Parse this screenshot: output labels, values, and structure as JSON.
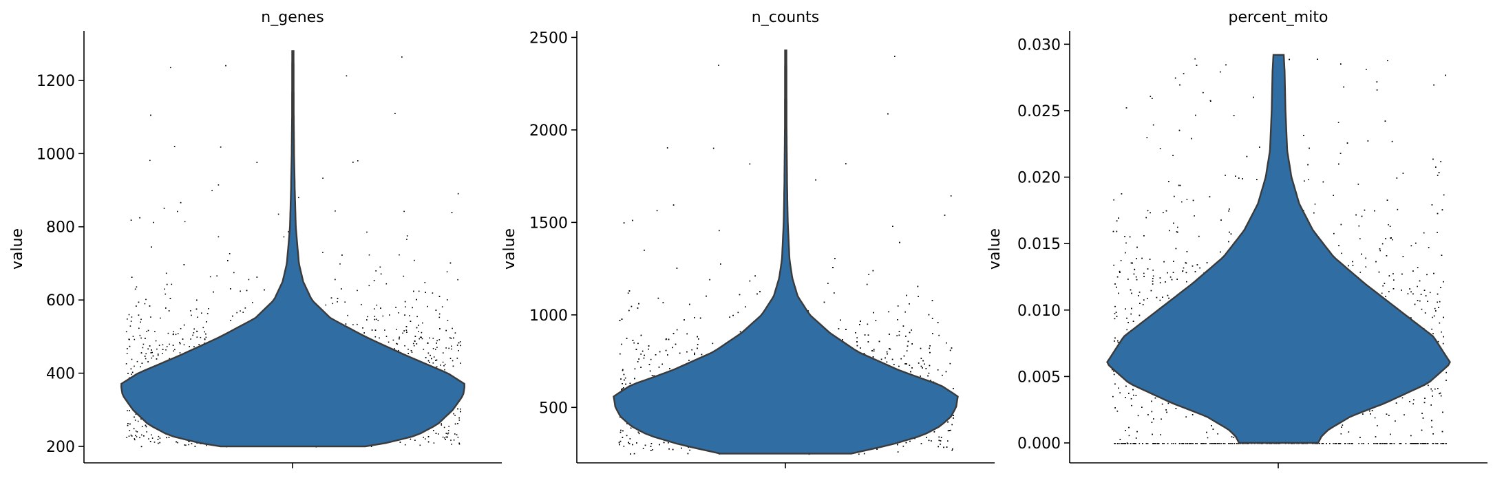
{
  "figure": {
    "background": "#ffffff"
  },
  "chart_data": [
    {
      "type": "violin",
      "title": "n_genes",
      "xlabel": "",
      "ylabel": "value",
      "ylim": [
        155,
        1335
      ],
      "yticks": [
        200,
        400,
        600,
        800,
        1000,
        1200
      ],
      "ytick_labels": [
        "200",
        "400",
        "600",
        "800",
        "1000",
        "1200"
      ],
      "color": "#2f6da3",
      "grid": false,
      "strip_points": true,
      "density_profile": [
        {
          "y": 200,
          "w": 0.42
        },
        {
          "y": 210,
          "w": 0.55
        },
        {
          "y": 230,
          "w": 0.72
        },
        {
          "y": 260,
          "w": 0.84
        },
        {
          "y": 300,
          "w": 0.93
        },
        {
          "y": 340,
          "w": 0.99
        },
        {
          "y": 370,
          "w": 1.0
        },
        {
          "y": 400,
          "w": 0.9
        },
        {
          "y": 450,
          "w": 0.65
        },
        {
          "y": 500,
          "w": 0.42
        },
        {
          "y": 550,
          "w": 0.22
        },
        {
          "y": 600,
          "w": 0.11
        },
        {
          "y": 650,
          "w": 0.06
        },
        {
          "y": 700,
          "w": 0.035
        },
        {
          "y": 800,
          "w": 0.017
        },
        {
          "y": 900,
          "w": 0.011
        },
        {
          "y": 1000,
          "w": 0.007
        },
        {
          "y": 1100,
          "w": 0.005
        },
        {
          "y": 1280,
          "w": 0.004
        }
      ],
      "data_min": 200,
      "data_max": 1280
    },
    {
      "type": "violin",
      "title": "n_counts",
      "xlabel": "",
      "ylabel": "value",
      "ylim": [
        200,
        2535
      ],
      "yticks": [
        500,
        1000,
        1500,
        2000,
        2500
      ],
      "ytick_labels": [
        "500",
        "1000",
        "1500",
        "2000",
        "2500"
      ],
      "color": "#2f6da3",
      "grid": false,
      "strip_points": true,
      "density_profile": [
        {
          "y": 250,
          "w": 0.38
        },
        {
          "y": 300,
          "w": 0.62
        },
        {
          "y": 350,
          "w": 0.8
        },
        {
          "y": 400,
          "w": 0.9
        },
        {
          "y": 450,
          "w": 0.96
        },
        {
          "y": 500,
          "w": 0.99
        },
        {
          "y": 560,
          "w": 1.0
        },
        {
          "y": 620,
          "w": 0.9
        },
        {
          "y": 700,
          "w": 0.66
        },
        {
          "y": 800,
          "w": 0.42
        },
        {
          "y": 900,
          "w": 0.26
        },
        {
          "y": 1000,
          "w": 0.14
        },
        {
          "y": 1100,
          "w": 0.07
        },
        {
          "y": 1200,
          "w": 0.038
        },
        {
          "y": 1300,
          "w": 0.022
        },
        {
          "y": 1500,
          "w": 0.012
        },
        {
          "y": 1700,
          "w": 0.008
        },
        {
          "y": 2000,
          "w": 0.005
        },
        {
          "y": 2430,
          "w": 0.004
        }
      ],
      "data_min": 250,
      "data_max": 2430
    },
    {
      "type": "violin",
      "title": "percent_mito",
      "xlabel": "",
      "ylabel": "value",
      "ylim": [
        -0.0015,
        0.031
      ],
      "yticks": [
        0.0,
        0.005,
        0.01,
        0.015,
        0.02,
        0.025,
        0.03
      ],
      "ytick_labels": [
        "0.000",
        "0.005",
        "0.010",
        "0.015",
        "0.020",
        "0.025",
        "0.030"
      ],
      "color": "#2f6da3",
      "grid": false,
      "strip_points": true,
      "density_profile": [
        {
          "y": 0.0,
          "w": 0.23
        },
        {
          "y": 0.0005,
          "w": 0.25
        },
        {
          "y": 0.001,
          "w": 0.29
        },
        {
          "y": 0.002,
          "w": 0.42
        },
        {
          "y": 0.003,
          "w": 0.62
        },
        {
          "y": 0.0045,
          "w": 0.87
        },
        {
          "y": 0.006,
          "w": 1.0
        },
        {
          "y": 0.008,
          "w": 0.9
        },
        {
          "y": 0.01,
          "w": 0.7
        },
        {
          "y": 0.012,
          "w": 0.5
        },
        {
          "y": 0.014,
          "w": 0.32
        },
        {
          "y": 0.016,
          "w": 0.2
        },
        {
          "y": 0.018,
          "w": 0.12
        },
        {
          "y": 0.02,
          "w": 0.075
        },
        {
          "y": 0.022,
          "w": 0.05
        },
        {
          "y": 0.025,
          "w": 0.04
        },
        {
          "y": 0.028,
          "w": 0.035
        },
        {
          "y": 0.0292,
          "w": 0.03
        }
      ],
      "data_min": 0.0,
      "data_max": 0.0292
    }
  ]
}
